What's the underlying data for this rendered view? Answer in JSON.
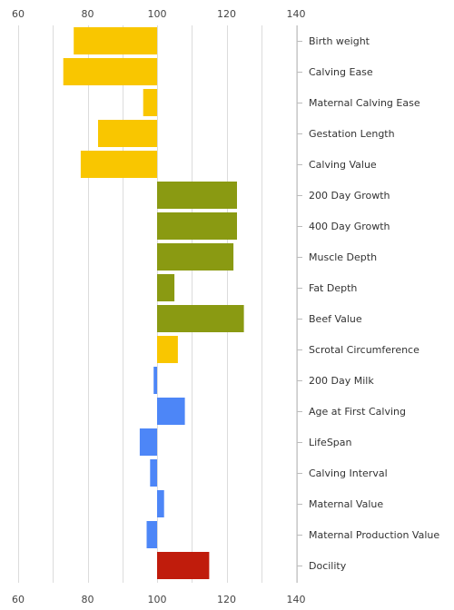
{
  "chart_data": {
    "type": "bar",
    "orientation": "horizontal",
    "xlim": [
      60,
      140
    ],
    "xticks": [
      60,
      80,
      100,
      120,
      140
    ],
    "baseline": 100,
    "grid": true,
    "legend": "none",
    "categories": [
      "Birth weight",
      "Calving Ease",
      "Maternal Calving Ease",
      "Gestation Length",
      "Calving Value",
      "200 Day Growth",
      "400 Day Growth",
      "Muscle Depth",
      "Fat Depth",
      "Beef Value",
      "Scrotal Circumference",
      "200 Day Milk",
      "Age at First Calving",
      "LifeSpan",
      "Calving Interval",
      "Maternal Value",
      "Maternal Production Value",
      "Docility"
    ],
    "values": [
      76,
      73,
      96,
      83,
      78,
      123,
      123,
      122,
      105,
      125,
      106,
      99,
      108,
      95,
      98,
      102,
      97,
      115
    ],
    "colors": [
      "#f9c600",
      "#f9c600",
      "#f9c600",
      "#f9c600",
      "#f9c600",
      "#8a9a12",
      "#8a9a12",
      "#8a9a12",
      "#8a9a12",
      "#8a9a12",
      "#f9c600",
      "#4d86f7",
      "#4d86f7",
      "#4d86f7",
      "#4d86f7",
      "#4d86f7",
      "#4d86f7",
      "#c01c0c"
    ]
  }
}
